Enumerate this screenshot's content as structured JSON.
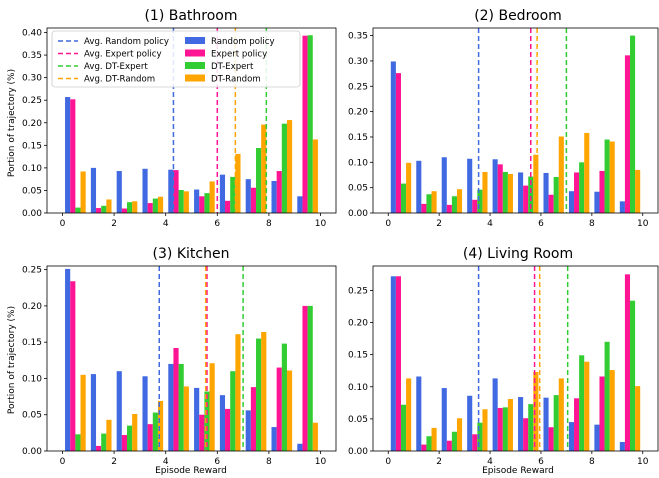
{
  "figure": {
    "ylabel": "Portion of trajectory (%)",
    "xlabel": "Episode Reward"
  },
  "colors": {
    "Random policy": "#4169e1",
    "Expert policy": "#ff1493",
    "DT-Expert": "#32cd32",
    "DT-Random": "#ffa500"
  },
  "legend": {
    "location": "upper-left of panel 1",
    "lines": [
      "Avg. Random policy",
      "Avg. Expert policy",
      "Avg. DT-Expert",
      "Avg. DT-Random"
    ],
    "bars": [
      "Random policy",
      "Expert policy",
      "DT-Expert",
      "DT-Random"
    ]
  },
  "chart_data": [
    {
      "type": "bar",
      "title": "(1) Bathroom",
      "xlabel": "",
      "ylabel": "Portion of trajectory (%)",
      "x_ticks": [
        "0",
        "2",
        "4",
        "6",
        "8",
        "10"
      ],
      "y_ticks": [
        "0.00",
        "0.05",
        "0.10",
        "0.15",
        "0.20",
        "0.25",
        "0.30",
        "0.35",
        "0.40"
      ],
      "xlim": [
        -0.6,
        10.6
      ],
      "ylim": [
        0,
        0.41
      ],
      "bins": [
        0,
        1,
        2,
        3,
        4,
        5,
        6,
        7,
        8,
        9,
        10
      ],
      "series": [
        {
          "name": "Random policy",
          "values": [
            0.257,
            0.1,
            0.093,
            0.098,
            0.096,
            0.052,
            0.085,
            0.075,
            0.071,
            0.037,
            0.0
          ]
        },
        {
          "name": "Expert policy",
          "values": [
            0.252,
            0.011,
            0.01,
            0.022,
            0.095,
            0.037,
            0.027,
            0.056,
            0.093,
            0.393,
            0.0
          ]
        },
        {
          "name": "DT-Expert",
          "values": [
            0.012,
            0.016,
            0.024,
            0.032,
            0.051,
            0.044,
            0.08,
            0.144,
            0.198,
            0.394,
            0.0
          ]
        },
        {
          "name": "DT-Random",
          "values": [
            0.092,
            0.03,
            0.026,
            0.036,
            0.048,
            0.07,
            0.131,
            0.196,
            0.206,
            0.163,
            0.0
          ]
        }
      ],
      "bins_note": "bars centered at 0.5, 1.5, ... 9.5",
      "avg_lines": [
        {
          "name": "Avg. Random policy",
          "x": 4.3
        },
        {
          "name": "Avg. Expert policy",
          "x": 6.0
        },
        {
          "name": "Avg. DT-Expert",
          "x": 7.9
        },
        {
          "name": "Avg. DT-Random",
          "x": 6.7
        }
      ]
    },
    {
      "type": "bar",
      "title": "(2) Bedroom",
      "xlabel": "",
      "ylabel": "",
      "x_ticks": [
        "0",
        "2",
        "4",
        "6",
        "8",
        "10"
      ],
      "y_ticks": [
        "0.00",
        "0.05",
        "0.10",
        "0.15",
        "0.20",
        "0.25",
        "0.30",
        "0.35"
      ],
      "xlim": [
        -0.6,
        10.6
      ],
      "ylim": [
        0,
        0.365
      ],
      "series": [
        {
          "name": "Random policy",
          "values": [
            0.299,
            0.103,
            0.11,
            0.107,
            0.106,
            0.08,
            0.079,
            0.043,
            0.042,
            0.023
          ]
        },
        {
          "name": "Expert policy",
          "values": [
            0.276,
            0.018,
            0.016,
            0.026,
            0.096,
            0.054,
            0.036,
            0.08,
            0.083,
            0.311
          ]
        },
        {
          "name": "DT-Expert",
          "values": [
            0.058,
            0.037,
            0.033,
            0.046,
            0.081,
            0.072,
            0.071,
            0.1,
            0.145,
            0.35
          ]
        },
        {
          "name": "DT-Random",
          "values": [
            0.099,
            0.043,
            0.047,
            0.081,
            0.077,
            0.115,
            0.151,
            0.158,
            0.141,
            0.085
          ]
        }
      ],
      "avg_lines": [
        {
          "name": "Avg. Random policy",
          "x": 3.55
        },
        {
          "name": "Avg. Expert policy",
          "x": 5.6
        },
        {
          "name": "Avg. DT-Expert",
          "x": 7.0
        },
        {
          "name": "Avg. DT-Random",
          "x": 5.85
        }
      ]
    },
    {
      "type": "bar",
      "title": "(3) Kitchen",
      "xlabel": "Episode Reward",
      "ylabel": "Portion of trajectory (%)",
      "x_ticks": [
        "0",
        "2",
        "4",
        "6",
        "8",
        "10"
      ],
      "y_ticks": [
        "0.00",
        "0.05",
        "0.10",
        "0.15",
        "0.20",
        "0.25"
      ],
      "xlim": [
        -0.6,
        10.6
      ],
      "ylim": [
        0,
        0.255
      ],
      "series": [
        {
          "name": "Random policy",
          "values": [
            0.251,
            0.106,
            0.11,
            0.103,
            0.12,
            0.087,
            0.077,
            0.056,
            0.033,
            0.01
          ]
        },
        {
          "name": "Expert policy",
          "values": [
            0.234,
            0.007,
            0.022,
            0.037,
            0.142,
            0.05,
            0.058,
            0.088,
            0.115,
            0.2
          ]
        },
        {
          "name": "DT-Expert",
          "values": [
            0.023,
            0.024,
            0.035,
            0.053,
            0.12,
            0.082,
            0.11,
            0.155,
            0.148,
            0.2
          ]
        },
        {
          "name": "DT-Random",
          "values": [
            0.105,
            0.043,
            0.051,
            0.069,
            0.089,
            0.121,
            0.161,
            0.164,
            0.111,
            0.039
          ]
        }
      ],
      "avg_lines": [
        {
          "name": "Avg. Random policy",
          "x": 3.75
        },
        {
          "name": "Avg. Expert policy",
          "x": 5.6
        },
        {
          "name": "Avg. DT-Expert",
          "x": 7.0
        },
        {
          "name": "Avg. DT-Random",
          "x": 5.55
        }
      ]
    },
    {
      "type": "bar",
      "title": "(4) Living Room",
      "xlabel": "Episode Reward",
      "ylabel": "",
      "x_ticks": [
        "0",
        "2",
        "4",
        "6",
        "8",
        "10"
      ],
      "y_ticks": [
        "0.00",
        "0.05",
        "0.10",
        "0.15",
        "0.20",
        "0.25"
      ],
      "xlim": [
        -0.6,
        10.6
      ],
      "ylim": [
        0,
        0.288
      ],
      "series": [
        {
          "name": "Random policy",
          "values": [
            0.272,
            0.116,
            0.098,
            0.086,
            0.113,
            0.084,
            0.083,
            0.045,
            0.041,
            0.014
          ]
        },
        {
          "name": "Expert policy",
          "values": [
            0.272,
            0.01,
            0.016,
            0.026,
            0.067,
            0.051,
            0.037,
            0.082,
            0.116,
            0.275
          ]
        },
        {
          "name": "DT-Expert",
          "values": [
            0.072,
            0.023,
            0.03,
            0.044,
            0.068,
            0.073,
            0.087,
            0.149,
            0.17,
            0.234
          ]
        },
        {
          "name": "DT-Random",
          "values": [
            0.113,
            0.036,
            0.051,
            0.065,
            0.081,
            0.123,
            0.113,
            0.139,
            0.126,
            0.101
          ]
        }
      ],
      "avg_lines": [
        {
          "name": "Avg. Random policy",
          "x": 3.55
        },
        {
          "name": "Avg. Expert policy",
          "x": 5.75
        },
        {
          "name": "Avg. DT-Expert",
          "x": 7.05
        },
        {
          "name": "Avg. DT-Random",
          "x": 5.95
        }
      ]
    }
  ]
}
